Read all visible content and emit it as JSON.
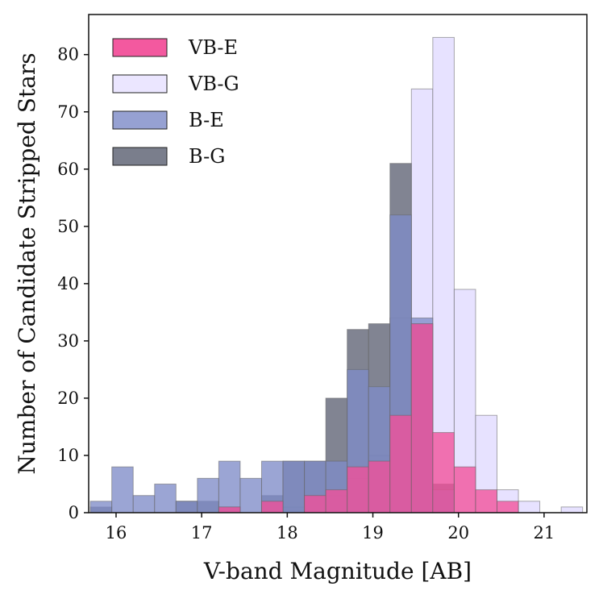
{
  "chart_data": {
    "type": "histogram",
    "title": "",
    "xlabel": "V-band Magnitude [AB]",
    "ylabel": "Number of Candidate Stripped Stars",
    "xlim": [
      15.68,
      21.5
    ],
    "ylim": [
      0,
      87
    ],
    "grid": false,
    "legend_position": "top-left",
    "x_ticks": [
      "16",
      "17",
      "18",
      "19",
      "20",
      "21"
    ],
    "y_ticks": [
      "0",
      "10",
      "20",
      "30",
      "40",
      "50",
      "60",
      "70",
      "80"
    ],
    "bin_edges": [
      15.7,
      15.95,
      16.2,
      16.45,
      16.7,
      16.95,
      17.2,
      17.45,
      17.7,
      17.95,
      18.2,
      18.45,
      18.7,
      18.95,
      19.2,
      19.45,
      19.7,
      19.95,
      20.2,
      20.45,
      20.7,
      20.95,
      21.2,
      21.45
    ],
    "series": [
      {
        "name": "VB-G",
        "color": "#e6e0ff",
        "values": [
          0,
          0,
          0,
          0,
          0,
          0,
          0,
          0,
          2,
          1,
          3,
          3,
          6,
          10,
          34,
          74,
          83,
          39,
          17,
          4,
          2,
          0,
          1
        ]
      },
      {
        "name": "B-G",
        "color": "#5d6273",
        "values": [
          1,
          0,
          0,
          0,
          2,
          2,
          1,
          0,
          3,
          9,
          9,
          20,
          32,
          33,
          61,
          33,
          5,
          0,
          0,
          0,
          0,
          0,
          0
        ]
      },
      {
        "name": "B-E",
        "color": "#7f8cc8",
        "values": [
          2,
          8,
          3,
          5,
          2,
          6,
          9,
          6,
          9,
          9,
          9,
          9,
          25,
          22,
          52,
          34,
          4,
          0,
          0,
          0,
          0,
          0,
          0
        ]
      },
      {
        "name": "VB-E",
        "color": "#f2509a",
        "values": [
          0,
          0,
          0,
          0,
          0,
          0,
          1,
          0,
          2,
          0,
          3,
          4,
          8,
          9,
          17,
          33,
          14,
          8,
          4,
          2,
          0,
          0,
          0
        ]
      }
    ],
    "legend": [
      {
        "label": "VB-E",
        "color": "#f2509a"
      },
      {
        "label": "VB-G",
        "color": "#e6e0ff"
      },
      {
        "label": "B-E",
        "color": "#7f8cc8"
      },
      {
        "label": "B-G",
        "color": "#5d6273"
      }
    ]
  }
}
